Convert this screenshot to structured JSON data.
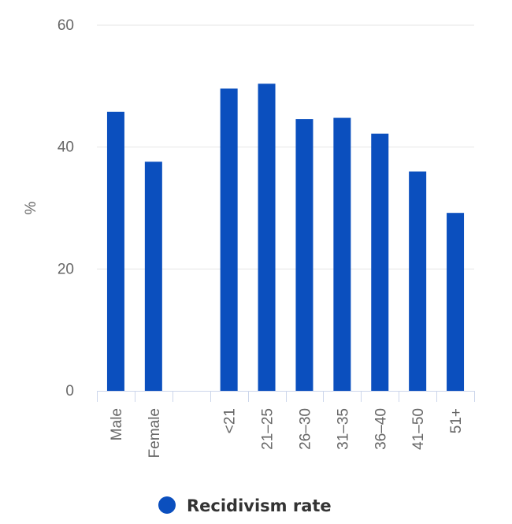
{
  "chart_data": {
    "type": "bar",
    "categories": [
      "Male",
      "Female",
      "",
      "<21",
      "21–25",
      "26–30",
      "31–35",
      "36–40",
      "41–50",
      "51+"
    ],
    "series": [
      {
        "name": "Recidivism rate",
        "color": "#0b4fbe",
        "values": [
          45.8,
          37.6,
          null,
          49.6,
          50.4,
          44.6,
          44.8,
          42.2,
          36.0,
          29.2
        ]
      }
    ],
    "title": "",
    "xlabel": "",
    "ylabel": "%",
    "ylim": [
      0,
      60
    ],
    "yticks": [
      0,
      20,
      40,
      60
    ],
    "grid": true,
    "legend": "bottom-center"
  }
}
